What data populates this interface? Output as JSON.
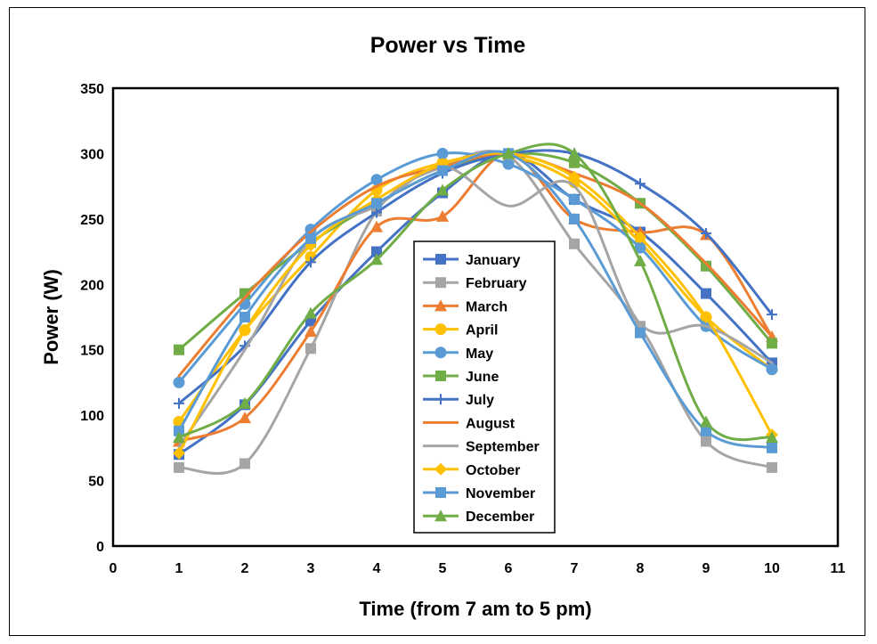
{
  "chart_data": {
    "type": "line",
    "title": "Power vs Time",
    "xlabel": "Time (from 7 am to 5 pm)",
    "ylabel": "Power (W)",
    "xlim": [
      0,
      11
    ],
    "ylim": [
      0,
      350
    ],
    "x_ticks": [
      "0",
      "1",
      "2",
      "3",
      "4",
      "5",
      "6",
      "7",
      "8",
      "9",
      "10",
      "11"
    ],
    "y_ticks": [
      "0",
      "50",
      "100",
      "150",
      "200",
      "250",
      "300",
      "350"
    ],
    "grid": false,
    "smooth": true,
    "legend_position": "center",
    "x": [
      1,
      2,
      3,
      4,
      5,
      6,
      7,
      8,
      9,
      10
    ],
    "series": [
      {
        "name": "January",
        "color": "#4472C4",
        "marker": "square",
        "values": [
          70,
          108,
          172,
          225,
          270,
          300,
          265,
          240,
          193,
          140
        ]
      },
      {
        "name": "February",
        "color": "#A5A5A5",
        "marker": "square",
        "values": [
          60,
          63,
          151,
          256,
          290,
          298,
          231,
          168,
          80,
          60
        ]
      },
      {
        "name": "March",
        "color": "#ED7D31",
        "marker": "triangle",
        "values": [
          80,
          98,
          164,
          244,
          252,
          300,
          250,
          240,
          238,
          160
        ]
      },
      {
        "name": "April",
        "color": "#FFC000",
        "marker": "circle",
        "values": [
          95,
          165,
          221,
          272,
          293,
          298,
          278,
          232,
          175,
          135
        ]
      },
      {
        "name": "May",
        "color": "#5B9BD5",
        "marker": "circle",
        "values": [
          125,
          185,
          242,
          280,
          300,
          292,
          265,
          228,
          168,
          135
        ]
      },
      {
        "name": "June",
        "color": "#70AD47",
        "marker": "square",
        "values": [
          150,
          193,
          232,
          262,
          287,
          300,
          293,
          262,
          214,
          155
        ]
      },
      {
        "name": "July",
        "color": "#4472C4",
        "marker": "plus",
        "values": [
          109,
          153,
          217,
          255,
          285,
          300,
          300,
          277,
          239,
          177
        ]
      },
      {
        "name": "August",
        "color": "#ED7D31",
        "marker": "none",
        "values": [
          130,
          190,
          240,
          275,
          290,
          300,
          285,
          262,
          216,
          160
        ]
      },
      {
        "name": "September",
        "color": "#A5A5A5",
        "marker": "none",
        "values": [
          76,
          150,
          234,
          260,
          290,
          260,
          275,
          170,
          168,
          140
        ]
      },
      {
        "name": "October",
        "color": "#FFC000",
        "marker": "diamond",
        "values": [
          71,
          165,
          230,
          265,
          292,
          300,
          282,
          236,
          175,
          85
        ]
      },
      {
        "name": "November",
        "color": "#5B9BD5",
        "marker": "square",
        "values": [
          88,
          175,
          235,
          262,
          287,
          300,
          250,
          163,
          88,
          75
        ]
      },
      {
        "name": "December",
        "color": "#70AD47",
        "marker": "triangle",
        "values": [
          83,
          109,
          178,
          219,
          272,
          300,
          300,
          218,
          95,
          83
        ]
      }
    ]
  }
}
